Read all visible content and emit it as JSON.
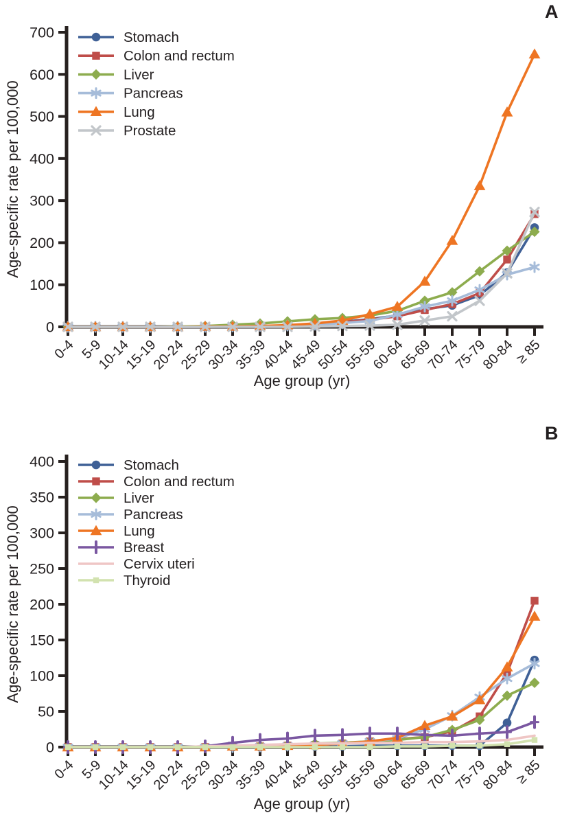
{
  "figure": {
    "background": "#ffffff",
    "text_color": "#231f20",
    "axis_color": "#27211f"
  },
  "chart_data": [
    {
      "panel": "A",
      "type": "line",
      "xlabel": "Age group (yr)",
      "ylabel": "Age-specific rate per 100,000",
      "ylim": [
        0,
        700
      ],
      "ytick_step": 100,
      "yticks": [
        0,
        100,
        200,
        300,
        400,
        500,
        600,
        700
      ],
      "grid": false,
      "legend_position": "top-left",
      "categories": [
        "0-4",
        "5-9",
        "10-14",
        "15-19",
        "20-24",
        "25-29",
        "30-34",
        "35-39",
        "40-44",
        "45-49",
        "50-54",
        "55-59",
        "60-64",
        "65-69",
        "70-74",
        "75-79",
        "80-84",
        "≥ 85"
      ],
      "series": [
        {
          "name": "Stomach",
          "color": "#3f6096",
          "marker": "circle",
          "values": [
            0,
            0,
            0,
            0,
            0,
            1,
            1,
            2,
            3,
            6,
            12,
            18,
            27,
            42,
            51,
            75,
            129,
            236
          ]
        },
        {
          "name": "Colon and rectum",
          "color": "#bf4d49",
          "marker": "square",
          "values": [
            0,
            0,
            0,
            0,
            0,
            0,
            1,
            1,
            2,
            4,
            11,
            17,
            25,
            40,
            54,
            80,
            160,
            268
          ]
        },
        {
          "name": "Liver",
          "color": "#8dac4e",
          "marker": "diamond",
          "values": [
            0,
            0,
            0,
            0,
            1,
            2,
            5,
            8,
            13,
            18,
            21,
            27,
            38,
            62,
            82,
            132,
            181,
            226
          ]
        },
        {
          "name": "Pancreas",
          "color": "#a6bcd9",
          "marker": "asterisk",
          "values": [
            0,
            0,
            0,
            0,
            0,
            0,
            1,
            2,
            3,
            5,
            9,
            14,
            29,
            48,
            62,
            88,
            124,
            142
          ]
        },
        {
          "name": "Lung",
          "color": "#ee7523",
          "marker": "triangle",
          "values": [
            0,
            0,
            0,
            0,
            0,
            1,
            1,
            2,
            4,
            8,
            15,
            30,
            48,
            108,
            205,
            335,
            510,
            648
          ]
        },
        {
          "name": "Prostate",
          "color": "#c2c6ca",
          "marker": "x",
          "values": [
            0,
            0,
            0,
            0,
            0,
            0,
            0,
            0,
            0,
            1,
            2,
            3,
            5,
            15,
            25,
            62,
            127,
            273
          ]
        }
      ]
    },
    {
      "panel": "B",
      "type": "line",
      "xlabel": "Age group (yr)",
      "ylabel": "Age-specific rate per 100,000",
      "ylim": [
        0,
        400
      ],
      "ytick_step": 50,
      "yticks": [
        0,
        50,
        100,
        150,
        200,
        250,
        300,
        350,
        400
      ],
      "grid": false,
      "legend_position": "top-left",
      "categories": [
        "0-4",
        "5-9",
        "10-14",
        "15-19",
        "20-24",
        "25-29",
        "30-34",
        "35-39",
        "40-44",
        "45-49",
        "50-54",
        "55-59",
        "60-64",
        "65-69",
        "70-74",
        "75-79",
        "80-84",
        "≥ 85"
      ],
      "series": [
        {
          "name": "Stomach",
          "color": "#3f6096",
          "marker": "circle",
          "values": [
            0,
            0,
            0,
            0,
            0,
            0,
            0,
            0,
            1,
            1,
            1,
            2,
            2,
            2,
            2,
            2,
            34,
            122
          ]
        },
        {
          "name": "Colon and rectum",
          "color": "#bf4d49",
          "marker": "square",
          "values": [
            0,
            0,
            0,
            0,
            0,
            0,
            1,
            1,
            2,
            3,
            5,
            8,
            11,
            14,
            22,
            43,
            104,
            205
          ]
        },
        {
          "name": "Liver",
          "color": "#8dac4e",
          "marker": "diamond",
          "values": [
            0,
            0,
            0,
            0,
            0,
            0,
            1,
            2,
            3,
            5,
            6,
            8,
            10,
            14,
            24,
            38,
            72,
            90
          ]
        },
        {
          "name": "Pancreas",
          "color": "#a6bcd9",
          "marker": "asterisk",
          "values": [
            0,
            0,
            0,
            0,
            0,
            0,
            0,
            1,
            2,
            3,
            5,
            8,
            12,
            25,
            44,
            70,
            96,
            117
          ]
        },
        {
          "name": "Lung",
          "color": "#ee7523",
          "marker": "triangle",
          "values": [
            0,
            0,
            0,
            0,
            0,
            0,
            1,
            1,
            2,
            3,
            5,
            8,
            13,
            30,
            43,
            66,
            112,
            183
          ]
        },
        {
          "name": "Breast",
          "color": "#7a57a1",
          "marker": "plus",
          "values": [
            0,
            0,
            0,
            0,
            0,
            1,
            6,
            10,
            12,
            16,
            17,
            19,
            19,
            17,
            16,
            19,
            21,
            35
          ]
        },
        {
          "name": "Cervix uteri",
          "color": "#efc6c5",
          "marker": "none",
          "values": [
            0,
            0,
            0,
            0,
            0,
            1,
            2,
            3,
            4,
            5,
            5,
            6,
            6,
            7,
            7,
            8,
            10,
            16
          ]
        },
        {
          "name": "Thyroid",
          "color": "#d2e2af",
          "marker": "square-small",
          "values": [
            0,
            0,
            0,
            0,
            0,
            0,
            0,
            0,
            0,
            0,
            0,
            0,
            1,
            1,
            2,
            2,
            4,
            10
          ]
        }
      ]
    }
  ]
}
